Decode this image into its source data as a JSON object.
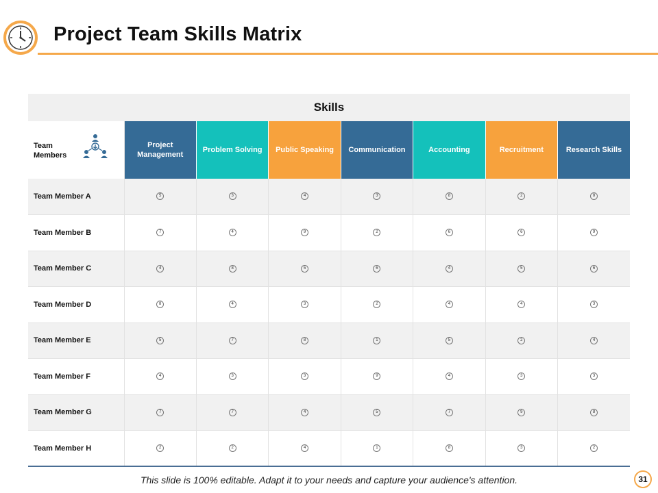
{
  "header": {
    "title": "Project Team Skills Matrix"
  },
  "matrix": {
    "band_label": "Skills",
    "member_column_label": "Team Members",
    "skills": [
      {
        "label": "Project Management",
        "color": "#356b96"
      },
      {
        "label": "Problem Solving",
        "color": "#14c1bb"
      },
      {
        "label": "Public Speaking",
        "color": "#f7a23d"
      },
      {
        "label": "Communication",
        "color": "#356b96"
      },
      {
        "label": "Accounting",
        "color": "#14c1bb"
      },
      {
        "label": "Recruitment",
        "color": "#f7a23d"
      },
      {
        "label": "Research Skills",
        "color": "#356b96"
      }
    ],
    "rows": [
      {
        "member": "Team Member A",
        "scores": [
          "5",
          "3",
          "4",
          "3",
          "8",
          "2",
          "8"
        ]
      },
      {
        "member": "Team Member B",
        "scores": [
          "7",
          "4",
          "9",
          "2",
          "6",
          "6",
          "9"
        ]
      },
      {
        "member": "Team Member C",
        "scores": [
          "4",
          "8",
          "5",
          "6",
          "4",
          "5",
          "6"
        ]
      },
      {
        "member": "Team Member D",
        "scores": [
          "8",
          "4",
          "3",
          "2",
          "4",
          "4",
          "3"
        ]
      },
      {
        "member": "Team Member E",
        "scores": [
          "5",
          "7",
          "8",
          "1",
          "5",
          "2",
          "4"
        ]
      },
      {
        "member": "Team Member F",
        "scores": [
          "4",
          "3",
          "3",
          "9",
          "4",
          "3",
          "3"
        ]
      },
      {
        "member": "Team Member G",
        "scores": [
          "7",
          "7",
          "4",
          "5",
          "7",
          "9",
          "8"
        ]
      },
      {
        "member": "Team Member H",
        "scores": [
          "2",
          "2",
          "4",
          "1",
          "8",
          "3",
          "2"
        ]
      }
    ]
  },
  "footer": {
    "note": "This slide is 100% editable.  Adapt it to your needs and capture your audience's attention.",
    "page_number": "31"
  },
  "colors": {
    "accent_orange": "#f5a84a",
    "navy": "#356b96",
    "teal": "#14c1bb",
    "orange": "#f7a23d"
  }
}
